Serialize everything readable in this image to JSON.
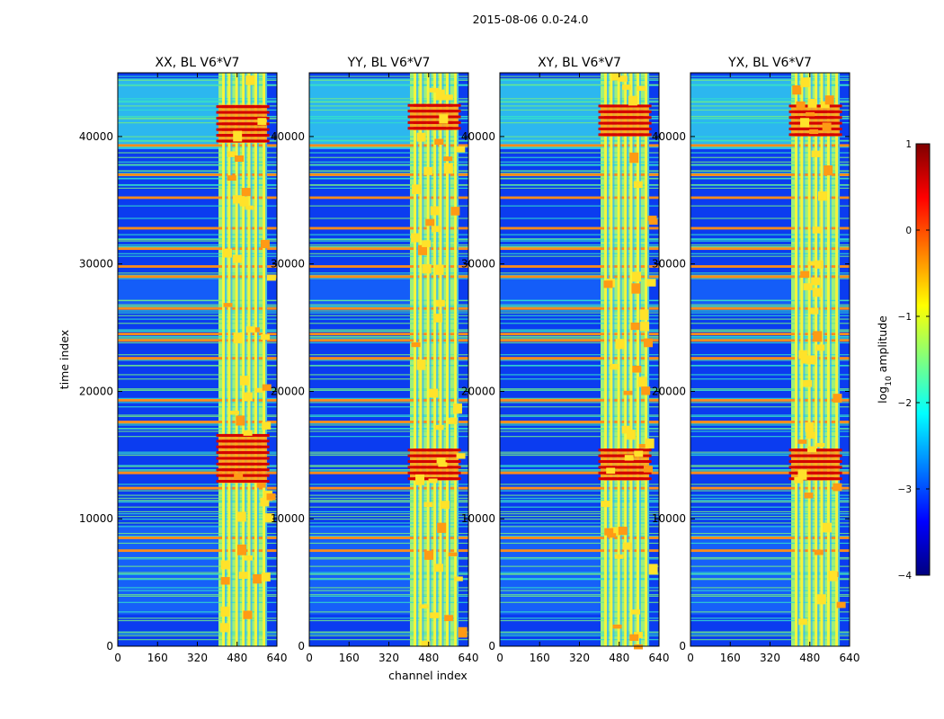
{
  "chart_data": {
    "type": "heatmap",
    "suptitle": "2015-08-06 0.0-24.0",
    "xlabel": "channel index",
    "ylabel": "time index",
    "xlim": [
      0,
      640
    ],
    "ylim": [
      0,
      45000
    ],
    "x_ticks": [
      "0",
      "160",
      "320",
      "480",
      "640"
    ],
    "x_tick_values": [
      0,
      160,
      320,
      480,
      640
    ],
    "y_ticks": [
      "0",
      "10000",
      "20000",
      "30000",
      "40000"
    ],
    "y_tick_values": [
      0,
      10000,
      20000,
      30000,
      40000
    ],
    "panels": [
      {
        "title": "XX, BL V6*V7",
        "polarization": "XX",
        "hot_bursts": [
          [
            39500,
            42500
          ],
          [
            12800,
            16500
          ]
        ]
      },
      {
        "title": "YY, BL V6*V7",
        "polarization": "YY",
        "hot_bursts": [
          [
            40500,
            42500
          ],
          [
            13000,
            15500
          ]
        ]
      },
      {
        "title": "XY, BL V6*V7",
        "polarization": "XY",
        "hot_bursts": [
          [
            40000,
            42500
          ],
          [
            13000,
            15500
          ]
        ]
      },
      {
        "title": "YX, BL V6*V7",
        "polarization": "YX",
        "hot_bursts": [
          [
            40000,
            42500
          ],
          [
            13000,
            15500
          ]
        ]
      }
    ],
    "rfi_channel_band": [
      405,
      600
    ],
    "rfi_channel_lines": [
      425,
      448,
      478,
      505,
      528,
      555,
      588
    ],
    "bright_time_rows": [
      7500,
      8500,
      12400,
      13600,
      17600,
      19300,
      22600,
      24000,
      24500,
      26500,
      29000,
      29800,
      31200,
      32800,
      35200,
      37000,
      39300
    ],
    "colorbar": {
      "label": "log10 amplitude",
      "label_main": "log",
      "label_sub": "10",
      "label_rest": " amplitude",
      "range": [
        -4,
        1
      ],
      "tick_values": [
        -4,
        -3,
        -2,
        -1,
        0,
        1
      ],
      "tick_labels": [
        "−4",
        "−3",
        "−2",
        "−1",
        "0",
        "1"
      ],
      "colormap": "jet"
    },
    "colors": {
      "jet": [
        "#00007f",
        "#0000ff",
        "#007fff",
        "#00ffff",
        "#7fff7f",
        "#ffff00",
        "#ff7f00",
        "#ff0000",
        "#7f0000"
      ]
    }
  }
}
